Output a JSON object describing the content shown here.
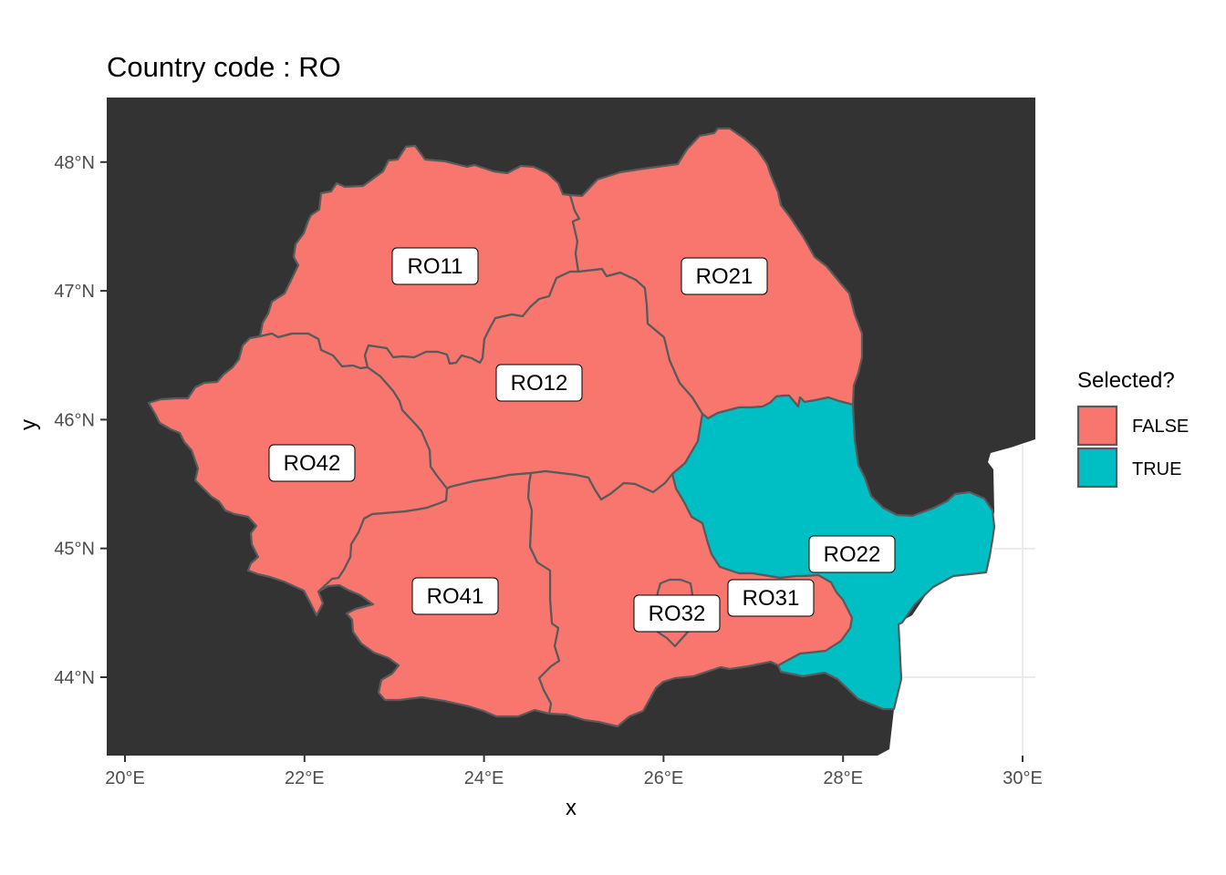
{
  "title": "Country code : RO",
  "axes": {
    "x_title": "x",
    "y_title": "y",
    "x_ticks": [
      {
        "value": 20,
        "label": "20°E"
      },
      {
        "value": 22,
        "label": "22°E"
      },
      {
        "value": 24,
        "label": "24°E"
      },
      {
        "value": 26,
        "label": "26°E"
      },
      {
        "value": 28,
        "label": "28°E"
      },
      {
        "value": 30,
        "label": "30°E"
      }
    ],
    "y_ticks": [
      {
        "value": 44,
        "label": "44°N"
      },
      {
        "value": 45,
        "label": "45°N"
      },
      {
        "value": 46,
        "label": "46°N"
      },
      {
        "value": 47,
        "label": "47°N"
      },
      {
        "value": 48,
        "label": "48°N"
      }
    ]
  },
  "legend": {
    "title": "Selected?",
    "items": [
      {
        "label": "FALSE",
        "color": "#F8766D"
      },
      {
        "label": "TRUE",
        "color": "#00BFC4"
      }
    ]
  },
  "colors": {
    "panel_background": "#333333",
    "sea": "#ffffff",
    "grid": "#ebebeb",
    "border": "#5a5a5a"
  },
  "regions": [
    {
      "code": "RO11",
      "selected": false
    },
    {
      "code": "RO12",
      "selected": false
    },
    {
      "code": "RO21",
      "selected": false
    },
    {
      "code": "RO22",
      "selected": true
    },
    {
      "code": "RO31",
      "selected": false
    },
    {
      "code": "RO32",
      "selected": false
    },
    {
      "code": "RO41",
      "selected": false
    },
    {
      "code": "RO42",
      "selected": false
    }
  ]
}
